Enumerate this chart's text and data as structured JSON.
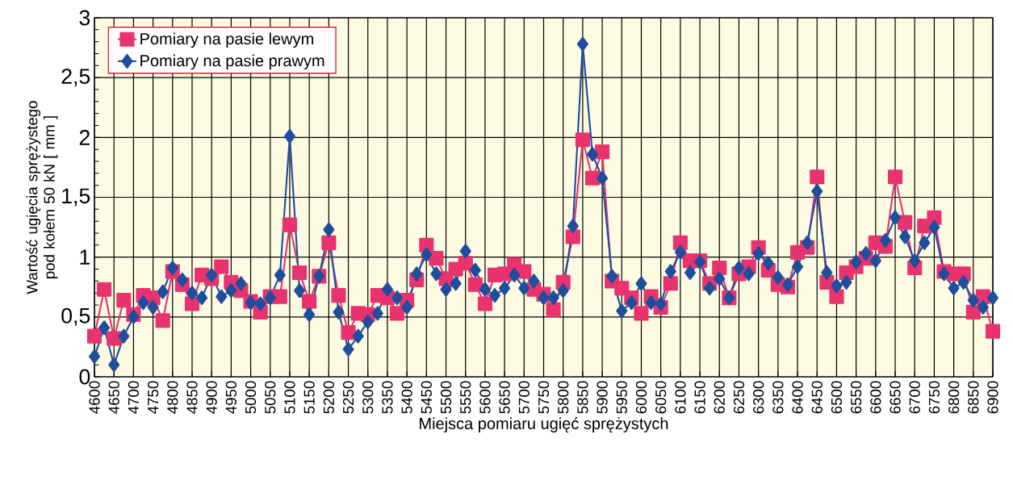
{
  "chart_data": {
    "type": "line",
    "xlabel": "Miejsca pomiaru ugięć sprężystych",
    "ylabel": "Wartość ugięcia sprężystego pod kołem 50 kN [ mm ]",
    "x": [
      4600,
      4625,
      4650,
      4675,
      4700,
      4725,
      4750,
      4775,
      4800,
      4825,
      4850,
      4875,
      4900,
      4925,
      4950,
      4975,
      5000,
      5025,
      5050,
      5075,
      5100,
      5125,
      5150,
      5175,
      5200,
      5225,
      5250,
      5275,
      5300,
      5325,
      5350,
      5375,
      5400,
      5425,
      5450,
      5475,
      5500,
      5525,
      5550,
      5575,
      5600,
      5625,
      5650,
      5675,
      5700,
      5725,
      5750,
      5775,
      5800,
      5825,
      5850,
      5875,
      5900,
      5925,
      5950,
      5975,
      6000,
      6025,
      6050,
      6075,
      6100,
      6125,
      6150,
      6175,
      6200,
      6225,
      6250,
      6275,
      6300,
      6325,
      6350,
      6375,
      6400,
      6425,
      6450,
      6475,
      6500,
      6525,
      6550,
      6575,
      6600,
      6625,
      6650,
      6675,
      6700,
      6725,
      6750,
      6775,
      6800,
      6825,
      6850,
      6875,
      6900
    ],
    "series": [
      {
        "name": "Pomiary na pasie lewym",
        "color": "#e8336f",
        "marker": "square",
        "values": [
          0.34,
          0.73,
          0.32,
          0.64,
          0.52,
          0.68,
          0.66,
          0.47,
          0.88,
          0.77,
          0.61,
          0.85,
          0.82,
          0.92,
          0.79,
          0.72,
          0.63,
          0.54,
          0.67,
          0.67,
          1.27,
          0.87,
          0.63,
          0.84,
          1.12,
          0.68,
          0.37,
          0.53,
          0.52,
          0.68,
          0.66,
          0.53,
          0.64,
          0.81,
          1.1,
          0.99,
          0.82,
          0.9,
          0.95,
          0.77,
          0.61,
          0.85,
          0.86,
          0.94,
          0.88,
          0.73,
          0.69,
          0.56,
          0.79,
          1.17,
          1.98,
          1.66,
          1.88,
          0.8,
          0.74,
          0.66,
          0.53,
          0.67,
          0.58,
          0.78,
          1.12,
          0.97,
          0.97,
          0.78,
          0.91,
          0.66,
          0.86,
          0.92,
          1.08,
          0.89,
          0.77,
          0.75,
          1.04,
          1.08,
          1.67,
          0.79,
          0.67,
          0.87,
          0.92,
          0.99,
          1.12,
          1.09,
          1.67,
          1.29,
          0.91,
          1.26,
          1.33,
          0.88,
          0.86,
          0.86,
          0.54,
          0.67,
          0.38
        ]
      },
      {
        "name": "Pomiary na pasie prawym",
        "color": "#1f4e9c",
        "marker": "diamond",
        "values": [
          0.17,
          0.41,
          0.1,
          0.34,
          0.5,
          0.62,
          0.58,
          0.71,
          0.91,
          0.81,
          0.7,
          0.66,
          0.85,
          0.67,
          0.72,
          0.78,
          0.62,
          0.61,
          0.66,
          0.85,
          2.01,
          0.72,
          0.52,
          0.84,
          1.23,
          0.54,
          0.23,
          0.34,
          0.46,
          0.53,
          0.73,
          0.66,
          0.58,
          0.86,
          1.02,
          0.86,
          0.73,
          0.78,
          1.05,
          0.89,
          0.73,
          0.68,
          0.74,
          0.85,
          0.74,
          0.8,
          0.66,
          0.66,
          0.72,
          1.26,
          2.78,
          1.86,
          1.66,
          0.84,
          0.55,
          0.62,
          0.78,
          0.62,
          0.61,
          0.88,
          1.04,
          0.87,
          0.96,
          0.74,
          0.82,
          0.66,
          0.91,
          0.86,
          1.03,
          0.95,
          0.83,
          0.77,
          0.92,
          1.12,
          1.55,
          0.87,
          0.76,
          0.79,
          0.96,
          1.03,
          0.97,
          1.14,
          1.33,
          1.17,
          0.97,
          1.12,
          1.25,
          0.86,
          0.74,
          0.79,
          0.64,
          0.58,
          0.66
        ]
      }
    ],
    "xlim": [
      4600,
      6900
    ],
    "xticks": [
      4600,
      4650,
      4700,
      4750,
      4800,
      4850,
      4900,
      4950,
      5000,
      5050,
      5100,
      5150,
      5200,
      5250,
      5300,
      5350,
      5400,
      5450,
      5500,
      5550,
      5600,
      5650,
      5700,
      5750,
      5800,
      5850,
      5900,
      5950,
      6000,
      6050,
      6100,
      6150,
      6200,
      6250,
      6300,
      6350,
      6400,
      6450,
      6500,
      6550,
      6600,
      6650,
      6700,
      6750,
      6800,
      6850,
      6900
    ],
    "ylim": [
      0,
      3
    ],
    "yticks": [
      0,
      {
        "value": 0.5,
        "label": "0,5"
      },
      1,
      {
        "value": 1.5,
        "label": "1,5"
      },
      2,
      {
        "value": 2.5,
        "label": "2,5"
      },
      3
    ],
    "grid": true,
    "legend": "top left"
  }
}
